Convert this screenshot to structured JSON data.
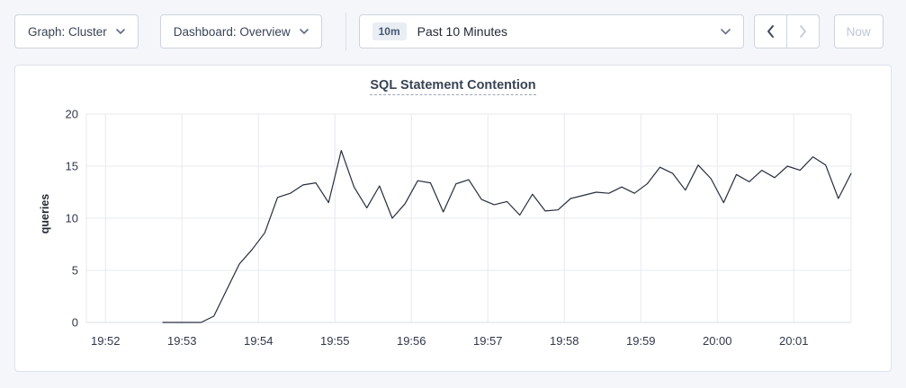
{
  "toolbar": {
    "graph_dropdown_label": "Graph: Cluster",
    "dashboard_dropdown_label": "Dashboard: Overview",
    "time_picker": {
      "badge": "10m",
      "label": "Past 10 Minutes"
    },
    "now_button_label": "Now"
  },
  "chart_data": {
    "type": "line",
    "title": "SQL Statement Contention",
    "ylabel": "queries",
    "ylim": [
      0,
      20
    ],
    "y_ticks": [
      0,
      5,
      10,
      15,
      20
    ],
    "x_ticks": [
      "19:52",
      "19:53",
      "19:54",
      "19:55",
      "19:56",
      "19:57",
      "19:58",
      "19:59",
      "20:00",
      "20:01"
    ],
    "x_domain": {
      "start": "19:51:45",
      "end": "20:01:45",
      "duration_seconds": 600
    },
    "x_tick_offsets_seconds": [
      15,
      75,
      135,
      195,
      255,
      315,
      375,
      435,
      495,
      555
    ],
    "grid": true,
    "legend": "none",
    "series": [
      {
        "name": "queries",
        "color": "#262d3d",
        "start_offset_seconds": 60,
        "interval_seconds": 10,
        "values": [
          0,
          0,
          0,
          0,
          0.6,
          3.1,
          5.6,
          7,
          8.6,
          12,
          12.4,
          13.2,
          13.4,
          11.5,
          16.5,
          13,
          11,
          13.1,
          10,
          11.4,
          13.6,
          13.4,
          10.6,
          13.3,
          13.7,
          11.8,
          11.3,
          11.6,
          10.3,
          12.3,
          10.7,
          10.8,
          11.9,
          12.2,
          12.5,
          12.4,
          13,
          12.4,
          13.3,
          14.9,
          14.3,
          12.7,
          15.1,
          13.8,
          11.5,
          14.2,
          13.5,
          14.6,
          13.9,
          15,
          14.6,
          15.9,
          15.1,
          11.9,
          14.3
        ]
      }
    ]
  }
}
